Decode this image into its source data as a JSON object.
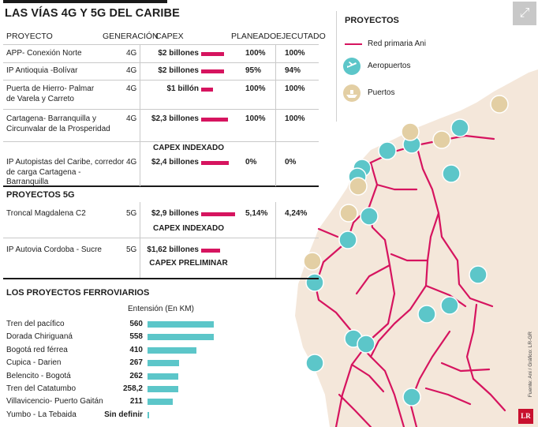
{
  "title": "LAS VÍAS 4G Y 5G DEL CARIBE",
  "table": {
    "headers": {
      "project": "PROYECTO",
      "generation": "GENERACIÓN",
      "capex": "CAPEX",
      "planned": "PLANEADO",
      "executed": "EJECUTADO"
    },
    "rows_4g": [
      {
        "project": "APP- Conexión Norte",
        "gen": "4G",
        "capex": "$2 billones",
        "planned": "100%",
        "executed": "100%"
      },
      {
        "project": "IP Antioquia -Bolívar",
        "gen": "4G",
        "capex": "$2 billones",
        "planned": "95%",
        "executed": "94%"
      },
      {
        "project": "Puerta de Hierro- Palmar de Varela y Carreto",
        "gen": "4G",
        "capex": "$1 billón",
        "planned": "100%",
        "executed": "100%"
      },
      {
        "project": "Cartagena- Barranquilla y Circunvalar de la Prosperidad",
        "gen": "4G",
        "capex": "$2,3 billones",
        "planned": "100%",
        "executed": "100%"
      },
      {
        "project": "IP Autopistas del Caribe, corredor de carga Cartagena - Barranquilla",
        "gen": "4G",
        "capex_note": "CAPEX INDEXADO",
        "capex": "$2,4 billones",
        "planned": "0%",
        "executed": "0%"
      }
    ],
    "section_5g": "PROYECTOS 5G",
    "rows_5g": [
      {
        "project": "Troncal Magdalena C2",
        "gen": "5G",
        "capex": "$2,9 billones",
        "capex_note": "CAPEX INDEXADO",
        "planned": "5,14%",
        "executed": "4,24%"
      },
      {
        "project": "IP Autovia Cordoba - Sucre",
        "gen": "5G",
        "capex": "$1,62 billones",
        "capex_note": "CAPEX PRELIMINAR",
        "planned": "",
        "executed": ""
      }
    ],
    "capex_bar_fractions": [
      0.67,
      0.67,
      0.33,
      0.77,
      0.8,
      0.97,
      0.54
    ]
  },
  "rail": {
    "title": "LOS PROYECTOS FERROVIARIOS",
    "column_label": "Entensión (En KM)",
    "items": [
      {
        "name": "Tren del pacífico",
        "km": "560",
        "value": 560
      },
      {
        "name": "Dorada Chiriguaná",
        "km": "558",
        "value": 558
      },
      {
        "name": "Bogotá red férrea",
        "km": "410",
        "value": 410
      },
      {
        "name": "Cupica - Darien",
        "km": "267",
        "value": 267
      },
      {
        "name": "Belencito - Bogotá",
        "km": "262",
        "value": 262
      },
      {
        "name": "Tren del Catatumbo",
        "km": "258,2",
        "value": 258.2
      },
      {
        "name": "Villavicencio- Puerto Gaitán",
        "km": "211",
        "value": 211
      },
      {
        "name": "Yumbo - La Tebaida",
        "km": "Sin definir",
        "value": 0
      }
    ],
    "max_value": 560
  },
  "legend": {
    "title": "PROYECTOS",
    "items": [
      {
        "label": "Red primaria Ani",
        "icon": "road-line-icon"
      },
      {
        "label": "Aeropuertos",
        "icon": "airplane-icon"
      },
      {
        "label": "Puertos",
        "icon": "ship-icon"
      }
    ]
  },
  "credit": "Fuente: Ani / Gráfico: LR-GR",
  "logo": "LR",
  "colors": {
    "road": "#d6145f",
    "airport": "#5cc6c9",
    "port": "#e3cfa4",
    "land": "#f4e7da",
    "rail_bar": "#5cc6c9",
    "capex_bar": "#d6145f"
  }
}
